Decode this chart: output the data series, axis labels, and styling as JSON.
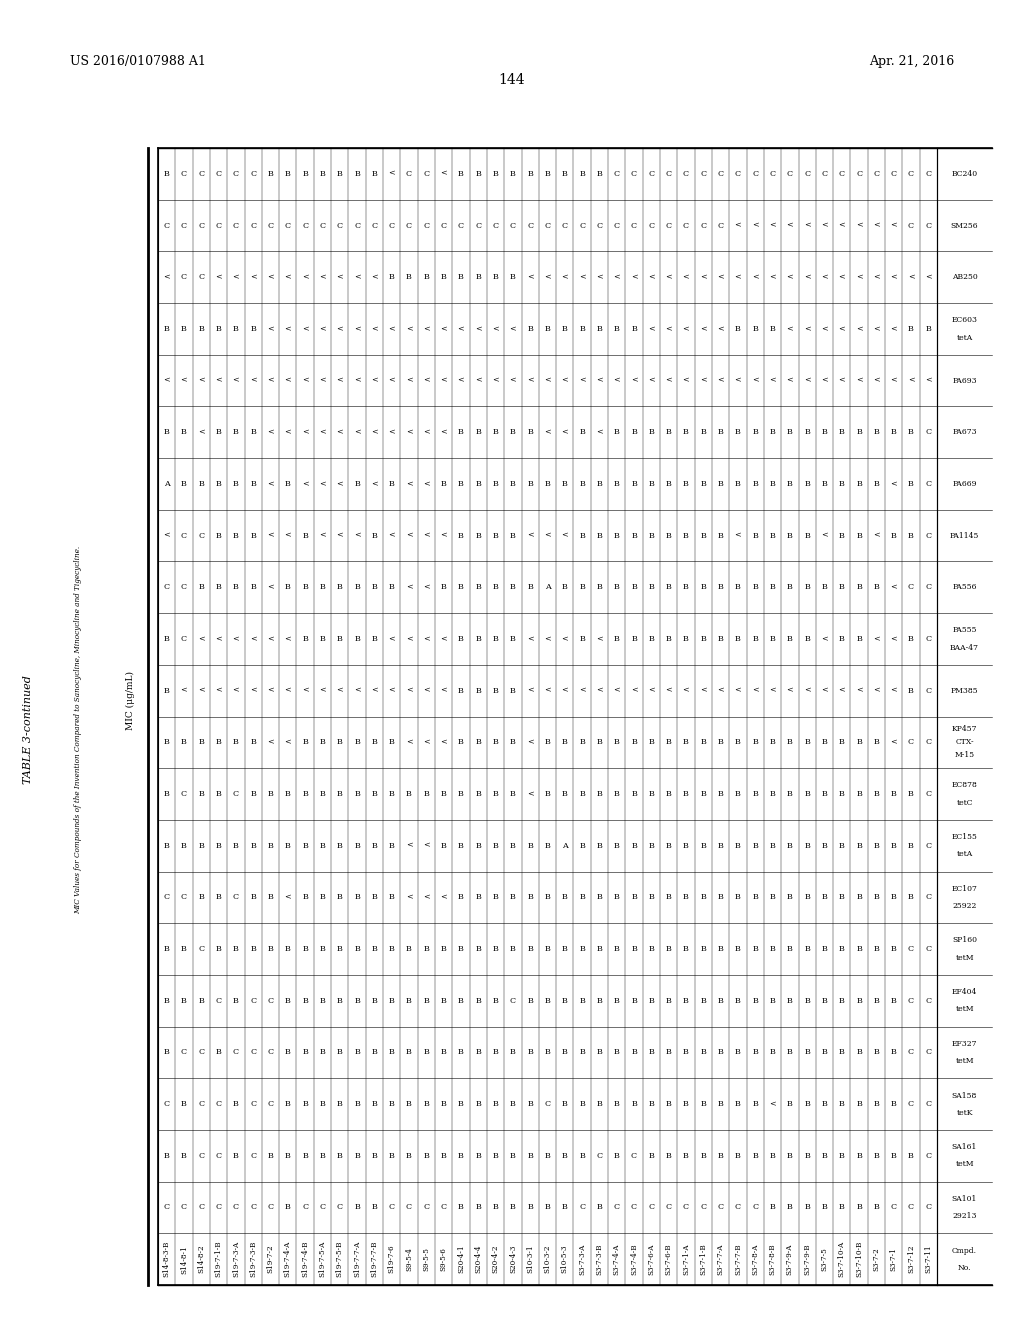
{
  "patent_left": "US 2016/0107988 A1",
  "patent_right": "Apr. 21, 2016",
  "page_number": "144",
  "table_title": "TABLE 3-continued",
  "table_subtitle": "MIC Values for Compounds of the Invention Compared to Sanocycline, Minocycline and Tigecycline.",
  "mic_label": "MIC (μg/mL)",
  "col_headers": [
    "Cmpd.\nNo.",
    "SA101\n29213",
    "SA161\ntetM",
    "SA158\ntetK",
    "EF327\ntetM",
    "EF404\ntetM",
    "SP160\ntetM",
    "EC107\n25922",
    "EC155\ntetA",
    "EC878\ntetC",
    "KP457\nCTX-\nM-15",
    "PM385",
    "PA555\nBAA-47",
    "PA556",
    "PA1145",
    "PA669",
    "PA673",
    "PA693",
    "EC603\ntetA",
    "AB250",
    "SM256",
    "BC240"
  ],
  "rows": [
    [
      "S14-8-3-B",
      "C",
      "B",
      "C",
      "B",
      "B",
      "B",
      "C",
      "B",
      "B",
      "B",
      "B",
      "B",
      "C",
      "<",
      "A",
      "B",
      "<",
      "B",
      "<",
      "C",
      "B"
    ],
    [
      "S14-8-1",
      "C",
      "B",
      "B",
      "C",
      "B",
      "B",
      "C",
      "B",
      "C",
      "B",
      "<",
      "C",
      "C",
      "C",
      "B",
      "B",
      "<",
      "B",
      "C",
      "C",
      "C"
    ],
    [
      "S14-8-2",
      "C",
      "C",
      "C",
      "C",
      "B",
      "C",
      "B",
      "B",
      "B",
      "B",
      "<",
      "<",
      "B",
      "C",
      "B",
      "<",
      "<",
      "B",
      "C",
      "C",
      "C"
    ],
    [
      "S19-7-1-B",
      "C",
      "C",
      "C",
      "B",
      "C",
      "B",
      "B",
      "B",
      "B",
      "B",
      "<",
      "<",
      "B",
      "B",
      "B",
      "B",
      "<",
      "B",
      "<",
      "C",
      "C"
    ],
    [
      "S19-7-3-A",
      "C",
      "B",
      "B",
      "C",
      "B",
      "B",
      "C",
      "B",
      "C",
      "B",
      "<",
      "<",
      "B",
      "B",
      "B",
      "B",
      "<",
      "B",
      "<",
      "C",
      "C"
    ],
    [
      "S19-7-3-B",
      "C",
      "C",
      "C",
      "C",
      "C",
      "B",
      "B",
      "B",
      "B",
      "B",
      "<",
      "<",
      "B",
      "B",
      "B",
      "B",
      "<",
      "B",
      "<",
      "C",
      "C"
    ],
    [
      "S19-7-2",
      "C",
      "B",
      "C",
      "C",
      "C",
      "B",
      "B",
      "B",
      "B",
      "<",
      "<",
      "<",
      "<",
      "<",
      "<",
      "<",
      "<",
      "<",
      "<",
      "C",
      "B"
    ],
    [
      "S19-7-4-A",
      "B",
      "B",
      "B",
      "B",
      "B",
      "B",
      "<",
      "B",
      "B",
      "<",
      "<",
      "<",
      "B",
      "<",
      "B",
      "<",
      "<",
      "<",
      "<",
      "C",
      "B"
    ],
    [
      "S19-7-4-B",
      "C",
      "B",
      "B",
      "B",
      "B",
      "B",
      "B",
      "B",
      "B",
      "B",
      "<",
      "B",
      "B",
      "B",
      "<",
      "<",
      "<",
      "<",
      "<",
      "C",
      "B"
    ],
    [
      "S19-7-5-A",
      "C",
      "B",
      "B",
      "B",
      "B",
      "B",
      "B",
      "B",
      "B",
      "B",
      "<",
      "B",
      "B",
      "<",
      "<",
      "<",
      "<",
      "<",
      "<",
      "C",
      "B"
    ],
    [
      "S19-7-5-B",
      "C",
      "B",
      "B",
      "B",
      "B",
      "B",
      "B",
      "B",
      "B",
      "B",
      "<",
      "B",
      "B",
      "<",
      "<",
      "<",
      "<",
      "<",
      "<",
      "C",
      "B"
    ],
    [
      "S19-7-7-A",
      "B",
      "B",
      "B",
      "B",
      "B",
      "B",
      "B",
      "B",
      "B",
      "B",
      "<",
      "B",
      "B",
      "<",
      "B",
      "<",
      "<",
      "<",
      "<",
      "C",
      "B"
    ],
    [
      "S19-7-7-B",
      "B",
      "B",
      "B",
      "B",
      "B",
      "B",
      "B",
      "B",
      "B",
      "B",
      "<",
      "B",
      "B",
      "B",
      "<",
      "<",
      "<",
      "<",
      "<",
      "C",
      "B"
    ],
    [
      "S19-7-6",
      "C",
      "B",
      "B",
      "B",
      "B",
      "B",
      "B",
      "B",
      "B",
      "B",
      "<",
      "<",
      "B",
      "<",
      "B",
      "<",
      "<",
      "<",
      "B",
      "C",
      "<"
    ],
    [
      "S9-5-4",
      "C",
      "B",
      "B",
      "B",
      "B",
      "B",
      "<",
      "<",
      "B",
      "<",
      "<",
      "<",
      "<",
      "<",
      "<",
      "<",
      "<",
      "<",
      "B",
      "C",
      "C"
    ],
    [
      "S9-5-5",
      "C",
      "B",
      "B",
      "B",
      "B",
      "B",
      "<",
      "<",
      "B",
      "<",
      "<",
      "<",
      "<",
      "<",
      "<",
      "<",
      "<",
      "<",
      "B",
      "C",
      "C"
    ],
    [
      "S9-5-6",
      "C",
      "B",
      "B",
      "B",
      "B",
      "B",
      "<",
      "B",
      "B",
      "<",
      "<",
      "<",
      "B",
      "<",
      "B",
      "<",
      "<",
      "<",
      "B",
      "C",
      "<"
    ],
    [
      "S20-4-1",
      "B",
      "B",
      "B",
      "B",
      "B",
      "B",
      "B",
      "B",
      "B",
      "B",
      "B",
      "B",
      "B",
      "B",
      "B",
      "B",
      "<",
      "<",
      "B",
      "C",
      "B"
    ],
    [
      "S20-4-4",
      "B",
      "B",
      "B",
      "B",
      "B",
      "B",
      "B",
      "B",
      "B",
      "B",
      "B",
      "B",
      "B",
      "B",
      "B",
      "B",
      "<",
      "<",
      "B",
      "C",
      "B"
    ],
    [
      "S20-4-2",
      "B",
      "B",
      "B",
      "B",
      "B",
      "B",
      "B",
      "B",
      "B",
      "B",
      "B",
      "B",
      "B",
      "B",
      "B",
      "B",
      "<",
      "<",
      "B",
      "C",
      "B"
    ],
    [
      "S20-4-3",
      "B",
      "B",
      "B",
      "B",
      "C",
      "B",
      "B",
      "B",
      "B",
      "B",
      "B",
      "B",
      "B",
      "B",
      "B",
      "B",
      "<",
      "<",
      "B",
      "C",
      "B"
    ],
    [
      "S10-3-1",
      "B",
      "B",
      "B",
      "B",
      "B",
      "B",
      "B",
      "B",
      "<",
      "<",
      "<",
      "<",
      "B",
      "<",
      "B",
      "B",
      "<",
      "B",
      "<",
      "C",
      "B"
    ],
    [
      "S10-3-2",
      "B",
      "B",
      "C",
      "B",
      "B",
      "B",
      "B",
      "B",
      "B",
      "B",
      "<",
      "<",
      "A",
      "<",
      "B",
      "<",
      "<",
      "B",
      "<",
      "C",
      "B"
    ],
    [
      "S10-5-3",
      "B",
      "B",
      "B",
      "B",
      "B",
      "B",
      "B",
      "A",
      "B",
      "B",
      "<",
      "<",
      "B",
      "<",
      "B",
      "<",
      "<",
      "B",
      "<",
      "C",
      "B"
    ],
    [
      "S3-7-3-A",
      "C",
      "B",
      "B",
      "B",
      "B",
      "B",
      "B",
      "B",
      "B",
      "B",
      "<",
      "B",
      "B",
      "B",
      "B",
      "B",
      "<",
      "B",
      "<",
      "C",
      "B"
    ],
    [
      "S3-7-3-B",
      "B",
      "C",
      "B",
      "B",
      "B",
      "B",
      "B",
      "B",
      "B",
      "B",
      "<",
      "<",
      "B",
      "B",
      "B",
      "<",
      "<",
      "B",
      "<",
      "C",
      "B"
    ],
    [
      "S3-7-4-A",
      "C",
      "B",
      "B",
      "B",
      "B",
      "B",
      "B",
      "B",
      "B",
      "B",
      "<",
      "B",
      "B",
      "B",
      "B",
      "B",
      "<",
      "B",
      "<",
      "C",
      "C"
    ],
    [
      "S3-7-4-B",
      "C",
      "C",
      "B",
      "B",
      "B",
      "B",
      "B",
      "B",
      "B",
      "B",
      "<",
      "B",
      "B",
      "B",
      "B",
      "B",
      "<",
      "B",
      "<",
      "C",
      "C"
    ],
    [
      "S3-7-6-A",
      "C",
      "B",
      "B",
      "B",
      "B",
      "B",
      "B",
      "B",
      "B",
      "B",
      "<",
      "B",
      "B",
      "B",
      "B",
      "B",
      "<",
      "<",
      "<",
      "C",
      "C"
    ],
    [
      "S3-7-6-B",
      "C",
      "B",
      "B",
      "B",
      "B",
      "B",
      "B",
      "B",
      "B",
      "B",
      "<",
      "B",
      "B",
      "B",
      "B",
      "B",
      "<",
      "<",
      "<",
      "C",
      "C"
    ],
    [
      "S3-7-1-A",
      "C",
      "B",
      "B",
      "B",
      "B",
      "B",
      "B",
      "B",
      "B",
      "B",
      "<",
      "B",
      "B",
      "B",
      "B",
      "B",
      "<",
      "<",
      "<",
      "C",
      "C"
    ],
    [
      "S3-7-1-B",
      "C",
      "B",
      "B",
      "B",
      "B",
      "B",
      "B",
      "B",
      "B",
      "B",
      "<",
      "B",
      "B",
      "B",
      "B",
      "B",
      "<",
      "<",
      "<",
      "C",
      "C"
    ],
    [
      "S3-7-7-A",
      "C",
      "B",
      "B",
      "B",
      "B",
      "B",
      "B",
      "B",
      "B",
      "B",
      "<",
      "B",
      "B",
      "B",
      "B",
      "B",
      "<",
      "<",
      "<",
      "C",
      "C"
    ],
    [
      "S3-7-7-B",
      "C",
      "B",
      "B",
      "B",
      "B",
      "B",
      "B",
      "B",
      "B",
      "B",
      "<",
      "B",
      "B",
      "<",
      "B",
      "B",
      "<",
      "B",
      "<",
      "<",
      "C"
    ],
    [
      "S3-7-8-A",
      "C",
      "B",
      "B",
      "B",
      "B",
      "B",
      "B",
      "B",
      "B",
      "B",
      "<",
      "B",
      "B",
      "B",
      "B",
      "B",
      "<",
      "B",
      "<",
      "<",
      "C"
    ],
    [
      "S3-7-8-B",
      "B",
      "B",
      "<",
      "B",
      "B",
      "B",
      "B",
      "B",
      "B",
      "B",
      "<",
      "B",
      "B",
      "B",
      "B",
      "B",
      "<",
      "B",
      "<",
      "<",
      "C"
    ],
    [
      "S3-7-9-A",
      "B",
      "B",
      "B",
      "B",
      "B",
      "B",
      "B",
      "B",
      "B",
      "B",
      "<",
      "B",
      "B",
      "B",
      "B",
      "B",
      "<",
      "<",
      "<",
      "<",
      "C"
    ],
    [
      "S3-7-9-B",
      "B",
      "B",
      "B",
      "B",
      "B",
      "B",
      "B",
      "B",
      "B",
      "B",
      "<",
      "B",
      "B",
      "B",
      "B",
      "B",
      "<",
      "<",
      "<",
      "<",
      "C"
    ],
    [
      "S3-7-5",
      "B",
      "B",
      "B",
      "B",
      "B",
      "B",
      "B",
      "B",
      "B",
      "B",
      "<",
      "<",
      "B",
      "<",
      "B",
      "B",
      "<",
      "<",
      "<",
      "<",
      "C"
    ],
    [
      "S3-7-10-A",
      "B",
      "B",
      "B",
      "B",
      "B",
      "B",
      "B",
      "B",
      "B",
      "B",
      "<",
      "B",
      "B",
      "B",
      "B",
      "B",
      "<",
      "<",
      "<",
      "<",
      "C"
    ],
    [
      "S3-7-10-B",
      "B",
      "B",
      "B",
      "B",
      "B",
      "B",
      "B",
      "B",
      "B",
      "B",
      "<",
      "B",
      "B",
      "B",
      "B",
      "B",
      "<",
      "<",
      "<",
      "<",
      "C"
    ],
    [
      "S3-7-2",
      "B",
      "B",
      "B",
      "B",
      "B",
      "B",
      "B",
      "B",
      "B",
      "B",
      "<",
      "<",
      "B",
      "<",
      "B",
      "B",
      "<",
      "<",
      "<",
      "<",
      "C"
    ],
    [
      "S3-7-1",
      "C",
      "B",
      "B",
      "B",
      "B",
      "B",
      "B",
      "B",
      "B",
      "<",
      "<",
      "<",
      "<",
      "B",
      "<",
      "B",
      "<",
      "<",
      "<",
      "<",
      "C"
    ],
    [
      "S3-7-12",
      "C",
      "B",
      "C",
      "C",
      "C",
      "C",
      "B",
      "B",
      "B",
      "C",
      "B",
      "B",
      "C",
      "B",
      "B",
      "B",
      "<",
      "B",
      "<",
      "C",
      "C"
    ],
    [
      "S3-7-11",
      "C",
      "C",
      "C",
      "C",
      "C",
      "C",
      "C",
      "C",
      "C",
      "C",
      "C",
      "C",
      "C",
      "C",
      "C",
      "C",
      "<",
      "B",
      "<",
      "C",
      "C"
    ]
  ],
  "background_color": "#ffffff",
  "text_color": "#000000",
  "border_color": "#000000"
}
